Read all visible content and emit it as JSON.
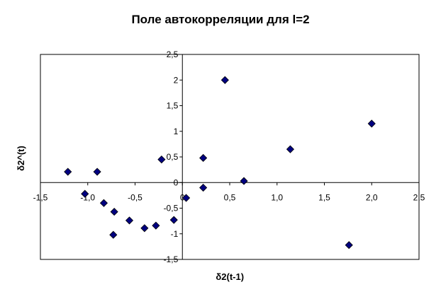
{
  "chart_data": {
    "type": "scatter",
    "title": "Поле автокорреляции для l=2",
    "xlabel": "δ2(t-1)",
    "ylabel": "δ2^(t)",
    "xlim": [
      -1.5,
      2.5
    ],
    "ylim": [
      -1.5,
      2.5
    ],
    "xticks": [
      -1.5,
      -1.0,
      -0.5,
      0,
      0.5,
      1.0,
      1.5,
      2.0,
      2.5
    ],
    "xtick_labels": [
      "-1,5",
      "-1,0",
      "-0,5",
      "0",
      "0,5",
      "1,0",
      "1,5",
      "2,0",
      "2,5"
    ],
    "yticks": [
      -1.5,
      -1,
      -0.5,
      0,
      0.5,
      1,
      1.5,
      2,
      2.5
    ],
    "ytick_labels": [
      "-1,5",
      "-1",
      "-0,5",
      "0",
      "0,5",
      "1",
      "1,5",
      "2",
      "2,5"
    ],
    "grid": false,
    "marker": "diamond",
    "marker_color": "#000080",
    "points": [
      {
        "x": -1.21,
        "y": 0.21
      },
      {
        "x": -0.9,
        "y": 0.21
      },
      {
        "x": -1.03,
        "y": -0.22
      },
      {
        "x": -0.83,
        "y": -0.4
      },
      {
        "x": -0.72,
        "y": -0.57
      },
      {
        "x": -0.73,
        "y": -1.02
      },
      {
        "x": -0.56,
        "y": -0.74
      },
      {
        "x": -0.4,
        "y": -0.89
      },
      {
        "x": -0.28,
        "y": -0.84
      },
      {
        "x": -0.22,
        "y": 0.45
      },
      {
        "x": -0.09,
        "y": -0.73
      },
      {
        "x": 0.04,
        "y": -0.3
      },
      {
        "x": 0.22,
        "y": -0.1
      },
      {
        "x": 0.22,
        "y": 0.48
      },
      {
        "x": 0.45,
        "y": 2.0
      },
      {
        "x": 0.65,
        "y": 0.03
      },
      {
        "x": 1.14,
        "y": 0.65
      },
      {
        "x": 1.76,
        "y": -1.22
      },
      {
        "x": 2.0,
        "y": 1.15
      }
    ]
  }
}
